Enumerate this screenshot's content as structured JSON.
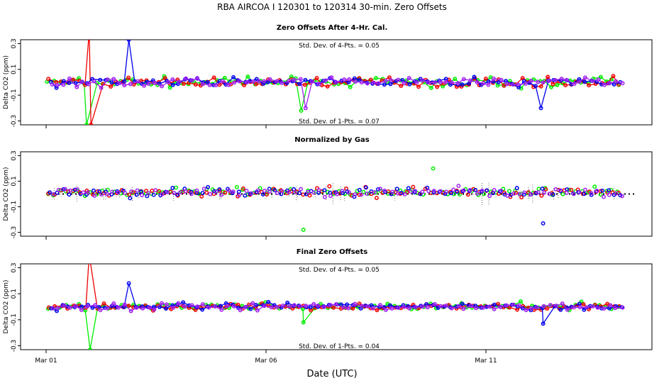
{
  "figure": {
    "title": "RBA   AIRCOA I   120301 to 120314   30-min. Zero Offsets",
    "xlabel": "Date (UTC)"
  },
  "chart_data": [
    {
      "type": "scatter",
      "title": "Zero Offsets After 4-Hr. Cal.",
      "ylabel": "Delta CO2 (ppm)",
      "ylim": [
        -0.33,
        0.33
      ],
      "yticks": [
        "0.3",
        "0.1",
        "-0.1",
        "-0.3"
      ],
      "xticks": [
        "Mar 01",
        "Mar 06",
        "Mar 11"
      ],
      "xlim": [
        0,
        13.6
      ],
      "grid": false,
      "annotations": [
        "Std. Dev. of 4-Pts. = 0.05",
        "Std. Dev. of 1-Pts. = 0.07"
      ],
      "series_colors": [
        "#00ee00",
        "#ee0000",
        "#0000ee",
        "#a020f0"
      ],
      "spikes": [
        {
          "series": 1,
          "x": 0.98,
          "y": 0.4
        },
        {
          "series": 1,
          "x": 1.02,
          "y": -0.33
        },
        {
          "series": 0,
          "x": 0.92,
          "y": -0.33
        },
        {
          "series": 2,
          "x": 1.88,
          "y": 0.33
        },
        {
          "series": 0,
          "x": 5.8,
          "y": -0.22
        },
        {
          "series": 3,
          "x": 5.9,
          "y": -0.2
        },
        {
          "series": 2,
          "x": 11.25,
          "y": -0.2
        }
      ]
    },
    {
      "type": "scatter",
      "title": "Normalized by Gas",
      "ylabel": "Delta CO2 (ppm)",
      "ylim": [
        -0.33,
        0.33
      ],
      "yticks": [
        "0.3",
        "0.1",
        "-0.1",
        "-0.3"
      ],
      "xticks": [
        "Mar 01",
        "Mar 06",
        "Mar 11"
      ],
      "xlim": [
        0,
        13.6
      ],
      "grid": false,
      "annotations": [],
      "series_colors": [
        "#00ee00",
        "#ee0000",
        "#0000ee",
        "#a020f0"
      ],
      "spikes": [
        {
          "series": 0,
          "x": 5.85,
          "y": -0.28
        },
        {
          "series": 2,
          "x": 11.3,
          "y": -0.23
        },
        {
          "series": 0,
          "x": 8.8,
          "y": 0.2
        }
      ]
    },
    {
      "type": "scatter",
      "title": "Final Zero Offsets",
      "ylabel": "Delta CO2 (ppm)",
      "ylim": [
        -0.33,
        0.33
      ],
      "yticks": [
        "0.3",
        "0.1",
        "-0.1",
        "-0.3"
      ],
      "xticks": [
        "Mar 01",
        "Mar 06",
        "Mar 11"
      ],
      "xlim": [
        0,
        13.6
      ],
      "grid": false,
      "annotations": [
        "Std. Dev. of 4-Pts. = 0.05",
        "Std. Dev. of 1-Pts. = 0.04"
      ],
      "series_colors": [
        "#00ee00",
        "#ee0000",
        "#0000ee",
        "#a020f0"
      ],
      "spikes": [
        {
          "series": 1,
          "x": 0.98,
          "y": 0.4
        },
        {
          "series": 0,
          "x": 1.0,
          "y": -0.33
        },
        {
          "series": 2,
          "x": 1.88,
          "y": 0.18
        },
        {
          "series": 0,
          "x": 5.85,
          "y": -0.12
        },
        {
          "series": 2,
          "x": 11.3,
          "y": -0.13
        }
      ]
    }
  ]
}
